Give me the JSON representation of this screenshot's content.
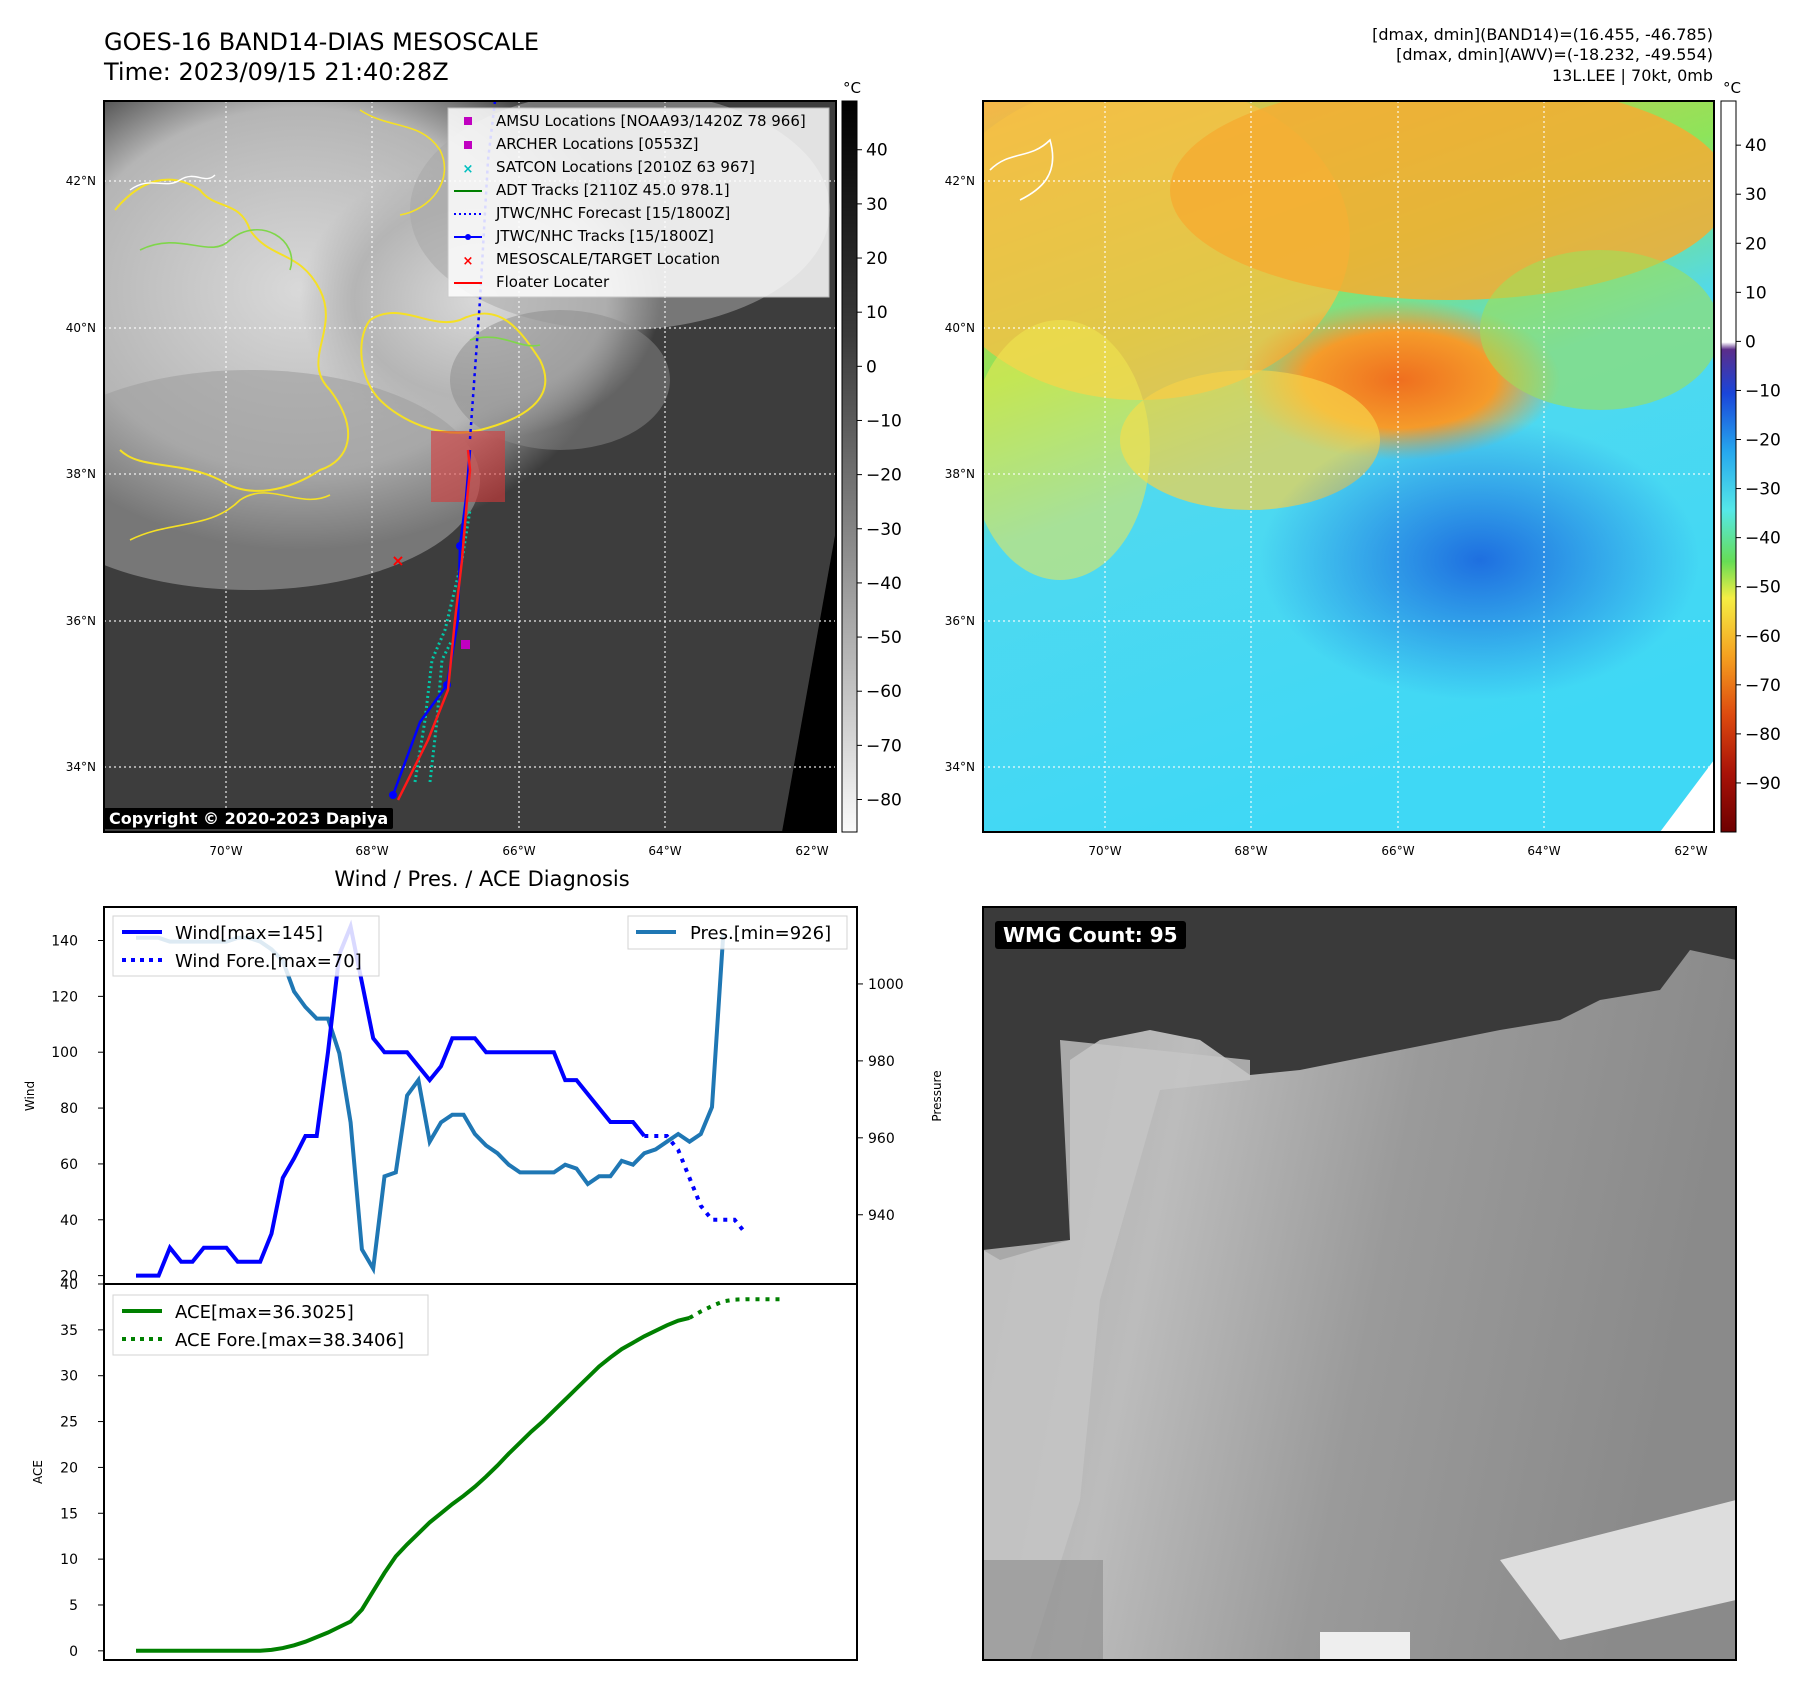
{
  "header": {
    "title_line1": "GOES-16 BAND14-DIAS MESOSCALE",
    "title_line2": "Time: 2023/09/15 21:40:28Z",
    "info_line1": "[dmax, dmin](BAND14)=(16.455, -46.785)",
    "info_line2": "[dmax, dmin](AWV)=(-18.232, -49.554)",
    "info_line3": "13L.LEE | 70kt, 0mb"
  },
  "map_axes": {
    "lat_labels": [
      "34°N",
      "36°N",
      "38°N",
      "40°N",
      "42°N"
    ],
    "lon_labels": [
      "70°W",
      "68°W",
      "66°W",
      "64°W",
      "62°W"
    ]
  },
  "ir_panel": {
    "colorbar_unit": "°C",
    "colorbar_ticks": [
      "40",
      "30",
      "20",
      "10",
      "0",
      "−10",
      "−20",
      "−30",
      "−40",
      "−50",
      "−60",
      "−70",
      "−80"
    ],
    "copyright": "Copyright © 2020-2023 Dapiya",
    "legend": [
      {
        "label": "AMSU Locations [NOAA93/1420Z 78 966]",
        "color": "#c000c0"
      },
      {
        "label": "ARCHER Locations [0553Z]",
        "color": "#c000c0"
      },
      {
        "label": "SATCON Locations [2010Z 63 967]",
        "color": "#00bfbf"
      },
      {
        "label": "ADT Tracks [2110Z 45.0 978.1]",
        "color": "#008000"
      },
      {
        "label": "JTWC/NHC Forecast [15/1800Z]",
        "color": "#0000ff"
      },
      {
        "label": "JTWC/NHC Tracks [15/1800Z]",
        "color": "#0000ff"
      },
      {
        "label": "MESOSCALE/TARGET Location",
        "color": "#ff0000"
      },
      {
        "label": "Floater Locater",
        "color": "#ff0000"
      }
    ]
  },
  "wv_panel": {
    "colorbar_unit": "°C",
    "colorbar_ticks": [
      "40",
      "30",
      "20",
      "10",
      "0",
      "−10",
      "−20",
      "−30",
      "−40",
      "−50",
      "−60",
      "−70",
      "−80",
      "−90"
    ]
  },
  "wmg_panel": {
    "label": "WMG Count: 95"
  },
  "chart_data": [
    {
      "type": "line",
      "title": "Wind / Pres. / ACE Diagnosis",
      "ylabel": "Wind",
      "ylabel_right": "Pressure",
      "ylim": [
        17,
        152
      ],
      "ylim_right": [
        922,
        1020
      ],
      "y_ticks": [
        "20",
        "40",
        "60",
        "80",
        "100",
        "120",
        "140"
      ],
      "y_ticks_right": [
        "940",
        "960",
        "980",
        "1000"
      ],
      "series": [
        {
          "name": "Wind[max=145]",
          "color": "#0000ff",
          "style": "solid",
          "axis": "left",
          "values": [
            20,
            20,
            20,
            30,
            25,
            25,
            30,
            30,
            30,
            25,
            25,
            25,
            35,
            55,
            62,
            70,
            70,
            100,
            135,
            145,
            125,
            105,
            100,
            100,
            100,
            95,
            90,
            95,
            105,
            105,
            105,
            100,
            100,
            100,
            100,
            100,
            100,
            100,
            90,
            90,
            85,
            80,
            75,
            75,
            75,
            70
          ]
        },
        {
          "name": "Wind Fore.[max=70]",
          "color": "#0000ff",
          "style": "dotted",
          "axis": "left",
          "values": [
            null,
            null,
            null,
            null,
            null,
            null,
            null,
            null,
            null,
            null,
            null,
            null,
            null,
            null,
            null,
            null,
            null,
            null,
            null,
            null,
            null,
            null,
            null,
            null,
            null,
            null,
            null,
            null,
            null,
            null,
            null,
            null,
            null,
            null,
            null,
            null,
            null,
            null,
            null,
            null,
            null,
            null,
            null,
            null,
            null,
            70,
            70,
            70,
            65,
            55,
            45,
            40,
            40,
            40,
            35
          ]
        },
        {
          "name": "Pres.[min=926]",
          "color": "#1f77b4",
          "style": "solid",
          "axis": "right",
          "values": [
            1012,
            1012,
            1012,
            1011,
            1011,
            1011,
            1011,
            1011,
            1011,
            1012,
            1012,
            1011,
            1009,
            1006,
            998,
            994,
            991,
            991,
            982,
            964,
            931,
            926,
            950,
            951,
            971,
            975,
            959,
            964,
            966,
            966,
            961,
            958,
            956,
            953,
            951,
            951,
            951,
            951,
            953,
            952,
            948,
            950,
            950,
            954,
            953,
            956,
            957,
            959,
            961,
            959,
            961,
            968,
            1013
          ]
        }
      ]
    },
    {
      "type": "line",
      "ylabel": "ACE",
      "ylim": [
        -1,
        40
      ],
      "y_ticks": [
        "0",
        "5",
        "10",
        "15",
        "20",
        "25",
        "30",
        "35",
        "40"
      ],
      "series": [
        {
          "name": "ACE[max=36.3025]",
          "color": "#008000",
          "style": "solid",
          "values": [
            0,
            0,
            0,
            0,
            0,
            0,
            0,
            0,
            0,
            0,
            0,
            0,
            0.1,
            0.3,
            0.6,
            1.0,
            1.5,
            2.0,
            2.6,
            3.2,
            4.5,
            6.5,
            8.5,
            10.3,
            11.6,
            12.8,
            14.0,
            15.0,
            16.0,
            16.9,
            17.9,
            19.0,
            20.2,
            21.5,
            22.7,
            23.9,
            25.0,
            26.2,
            27.4,
            28.6,
            29.8,
            31.0,
            32.0,
            32.9,
            33.6,
            34.3,
            34.9,
            35.5,
            36.0,
            36.3025
          ]
        },
        {
          "name": "ACE Fore.[max=38.3406]",
          "color": "#008000",
          "style": "dotted",
          "values": [
            null,
            null,
            null,
            null,
            null,
            null,
            null,
            null,
            null,
            null,
            null,
            null,
            null,
            null,
            null,
            null,
            null,
            null,
            null,
            null,
            null,
            null,
            null,
            null,
            null,
            null,
            null,
            null,
            null,
            null,
            null,
            null,
            null,
            null,
            null,
            null,
            null,
            null,
            null,
            null,
            null,
            null,
            null,
            null,
            null,
            null,
            null,
            null,
            null,
            36.3025,
            37.0,
            37.6,
            38.1,
            38.3,
            38.3406,
            38.3406,
            38.3406,
            38.3406
          ]
        }
      ]
    }
  ]
}
